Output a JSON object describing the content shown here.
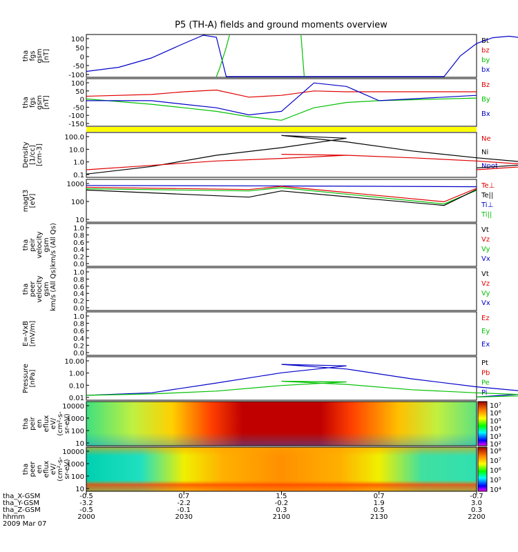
{
  "title": "P5 (TH-A) fields and ground moments overview",
  "panels": [
    {
      "ylabel": [
        "tha",
        "fgs",
        "gsm",
        "[nT]"
      ],
      "ticks": [
        "100",
        "50",
        "0",
        "-50",
        "-100"
      ],
      "legend": [
        {
          "text": "Bt",
          "color": "#000000"
        },
        {
          "text": "bz",
          "color": "#e00000"
        },
        {
          "text": "by",
          "color": "#00c000"
        },
        {
          "text": "bx",
          "color": "#0000c8"
        }
      ]
    },
    {
      "ylabel": [
        "tha",
        "fgs",
        "gsm",
        "[nT]"
      ],
      "ticks": [
        "100",
        "50",
        "0",
        "-50",
        "-100",
        "-150"
      ],
      "legend": [
        {
          "text": "Bz",
          "color": "#e00000"
        },
        {
          "text": "By",
          "color": "#00c000"
        },
        {
          "text": "Bx",
          "color": "#0000c8"
        }
      ]
    },
    {
      "ylabel": [
        "Density",
        "[1/cc]",
        "[cm-3]"
      ],
      "ticks": [
        "100.0",
        "10.0",
        "1.0",
        "0.1"
      ],
      "legend": [
        {
          "text": "Ne",
          "color": "#e00000"
        },
        {
          "text": "Ni",
          "color": "#000000"
        },
        {
          "text": "Npot",
          "color": "#0000c8"
        }
      ]
    },
    {
      "ylabel": [
        "magt3",
        "[eV]"
      ],
      "ticks": [
        "1000",
        "100",
        "10"
      ],
      "legend": [
        {
          "text": "Te⊥",
          "color": "#e00000"
        },
        {
          "text": "Te||",
          "color": "#000000"
        },
        {
          "text": "Ti⊥",
          "color": "#0000c8"
        },
        {
          "text": "Ti||",
          "color": "#00c000"
        }
      ]
    },
    {
      "ylabel": [
        "tha",
        "peir",
        "velocity",
        "gsm",
        "km/s (All Qs)"
      ],
      "ticks": [
        "1.0",
        "0.8",
        "0.6",
        "0.4",
        "0.2",
        "0.0"
      ],
      "legend": [
        {
          "text": "Vt",
          "color": "#000000"
        },
        {
          "text": "Vz",
          "color": "#e00000"
        },
        {
          "text": "Vy",
          "color": "#00c000"
        },
        {
          "text": "Vx",
          "color": "#0000c8"
        }
      ]
    },
    {
      "ylabel": [
        "tha",
        "peer",
        "velocity",
        "gsm",
        "km/s (All Qs)"
      ],
      "ticks": [
        "1.0",
        "0.8",
        "0.6",
        "0.4",
        "0.2",
        "0.0"
      ],
      "legend": [
        {
          "text": "Vt",
          "color": "#000000"
        },
        {
          "text": "Vz",
          "color": "#e00000"
        },
        {
          "text": "Vy",
          "color": "#00c000"
        },
        {
          "text": "Vx",
          "color": "#0000c8"
        }
      ]
    },
    {
      "ylabel": [
        "E=-VxB",
        "[mV/m]"
      ],
      "ticks": [
        "1.0",
        "0.8",
        "0.6",
        "0.4",
        "0.2",
        "0.0"
      ],
      "legend": [
        {
          "text": "Ez",
          "color": "#e00000"
        },
        {
          "text": "Ey",
          "color": "#00c000"
        },
        {
          "text": "Ex",
          "color": "#0000c8"
        }
      ]
    },
    {
      "ylabel": [
        "Pressure",
        "[nPa]"
      ],
      "ticks": [
        "10.00",
        "1.00",
        "0.10",
        "0.01"
      ],
      "legend": [
        {
          "text": "Pt",
          "color": "#000000"
        },
        {
          "text": "Pb",
          "color": "#e00000"
        },
        {
          "text": "Pe",
          "color": "#00c000"
        },
        {
          "text": "Pi",
          "color": "#0000c8"
        }
      ]
    },
    {
      "ylabel": [
        "tha",
        "peir",
        "en",
        "eflux",
        "eV/",
        "(cm²-s-",
        "sr-eV)"
      ],
      "ticks": [
        "10000",
        "1000",
        "100",
        "10"
      ],
      "colorbar": [
        "10⁷",
        "10⁶",
        "10⁵",
        "10⁴",
        "10³",
        "10²"
      ]
    },
    {
      "ylabel": [
        "tha",
        "peer",
        "en",
        "eflux",
        "eV/",
        "(cm²-s-",
        "sr-eV)"
      ],
      "ticks": [
        "10000",
        "1000",
        "100",
        "10"
      ],
      "colorbar": [
        "10⁸",
        "10⁷",
        "10⁶",
        "10⁵",
        "10⁴"
      ]
    }
  ],
  "xaxis": {
    "row_labels": [
      "tha_X-GSM",
      "tha_Y-GSM",
      "tha_Z-GSM",
      "hhmm",
      "2009 Mar 07"
    ],
    "columns": [
      {
        "x": "-0.5",
        "y": "-3.2",
        "z": "-0.5",
        "t": "2000"
      },
      {
        "x": "0.7",
        "y": "-2.2",
        "z": "-0.1",
        "t": "2030"
      },
      {
        "x": "1.5",
        "y": "-0.2",
        "z": "0.3",
        "t": "2100"
      },
      {
        "x": "0.7",
        "y": "1.9",
        "z": "0.5",
        "t": "2130"
      },
      {
        "x": "-0.7",
        "y": "3.0",
        "z": "0.3",
        "t": "2200"
      }
    ]
  },
  "chart_data": {
    "type": "line",
    "title": "P5 (TH-A) fields and ground moments overview",
    "x_time_range": [
      "2000",
      "2200"
    ],
    "x_ticks_hhmm": [
      "2000",
      "2030",
      "2100",
      "2130",
      "2200"
    ],
    "panels": [
      {
        "name": "tha fgs gsm",
        "ylim": [
          -100,
          100
        ],
        "series": [
          {
            "name": "bx",
            "color": "#0000c8",
            "x": [
              2000,
              2010,
              2020,
              2030,
              2036,
              2040,
              2043,
              2150,
              2155,
              2200,
              2205,
              2210,
              2220
            ],
            "y": [
              -75,
              -55,
              -10,
              60,
              100,
              90,
              -100,
              -100,
              0,
              60,
              88,
              95,
              75
            ]
          },
          {
            "name": "by",
            "color": "#00c000",
            "x": [
              2040,
              2041,
              2043,
              2044
            ],
            "y": [
              -100,
              -60,
              40,
              100
            ]
          },
          {
            "name": "by",
            "color": "#00c000",
            "x": [
              2106,
              2107
            ],
            "y": [
              100,
              -100
            ]
          }
        ]
      },
      {
        "name": "tha fgs gsm (detrended)",
        "ylim": [
          -160,
          100
        ],
        "series": [
          {
            "name": "Bz",
            "color": "#e00000",
            "x": [
              2000,
              2020,
              2030,
              2040,
              2050,
              2100,
              2110,
              2120,
              2130,
              2200
            ],
            "y": [
              5,
              15,
              30,
              40,
              0,
              10,
              35,
              30,
              30,
              30
            ]
          },
          {
            "name": "By",
            "color": "#00c000",
            "x": [
              2000,
              2020,
              2030,
              2040,
              2050,
              2100,
              2110,
              2120,
              2130,
              2200
            ],
            "y": [
              -10,
              -40,
              -60,
              -80,
              -110,
              -130,
              -60,
              -30,
              -20,
              -5
            ]
          },
          {
            "name": "Bx",
            "color": "#0000c8",
            "x": [
              2000,
              2020,
              2030,
              2040,
              2050,
              2100,
              2110,
              2120,
              2130,
              2200
            ],
            "y": [
              -20,
              -20,
              -40,
              -60,
              -100,
              -80,
              80,
              60,
              -20,
              10
            ]
          }
        ]
      },
      {
        "name": "Density",
        "ylim": [
          0.1,
          100
        ],
        "log": true,
        "series": [
          {
            "name": "Ni",
            "color": "#000000",
            "x": [
              2000,
              2020,
              2040,
              2060,
              2080,
              2100,
              2120,
              2140,
              2160,
              2180,
              2200
            ],
            "y": [
              0.15,
              0.5,
              3,
              10,
              45,
              70,
              25,
              6,
              2,
              0.8,
              0.4
            ]
          },
          {
            "name": "Ne",
            "color": "#e00000",
            "x": [
              2000,
              2020,
              2040,
              2060,
              2080,
              2100,
              2120,
              2140,
              2160,
              2180,
              2200
            ],
            "y": [
              0.3,
              0.6,
              1.2,
              1.8,
              3,
              3.5,
              3,
              2,
              1.2,
              0.6,
              0.3
            ]
          }
        ]
      },
      {
        "name": "Temperature",
        "ylim": [
          10,
          1000
        ],
        "log": true,
        "series": [
          {
            "name": "Ti⊥",
            "color": "#0000c8",
            "x": [
              2000,
              2100,
              2200
            ],
            "y": [
              550,
              520,
              480
            ]
          },
          {
            "name": "Te⊥",
            "color": "#e00000",
            "x": [
              2000,
              2050,
              2100,
              2150,
              2200
            ],
            "y": [
              450,
              350,
              500,
              90,
              400
            ]
          },
          {
            "name": "Ti||",
            "color": "#00c000",
            "x": [
              2000,
              2050,
              2100,
              2150,
              2200
            ],
            "y": [
              380,
              300,
              430,
              70,
              320
            ]
          },
          {
            "name": "Te||",
            "color": "#000000",
            "x": [
              2000,
              2050,
              2100,
              2150,
              2200
            ],
            "y": [
              330,
              150,
              300,
              60,
              350
            ]
          }
        ]
      },
      {
        "name": "Pressure",
        "ylim": [
          0.01,
          10
        ],
        "log": true,
        "series": [
          {
            "name": "Pi",
            "color": "#0000c8",
            "x": [
              2000,
              2020,
              2040,
              2060,
              2080,
              2100,
              2120,
              2140,
              2160,
              2180,
              2200
            ],
            "y": [
              0.02,
              0.03,
              0.15,
              0.8,
              2.5,
              3.2,
              1.5,
              0.3,
              0.08,
              0.03,
              0.015
            ]
          },
          {
            "name": "Pe",
            "color": "#00c000",
            "x": [
              2000,
              2020,
              2040,
              2060,
              2080,
              2100,
              2120,
              2140,
              2160,
              2180,
              2200
            ],
            "y": [
              0.02,
              0.025,
              0.04,
              0.1,
              0.18,
              0.2,
              0.12,
              0.05,
              0.03,
              0.02,
              0.015
            ]
          }
        ]
      },
      {
        "name": "tha peir en eflux",
        "type": "heatmap",
        "ylim": [
          10,
          20000
        ],
        "log": true,
        "colorbar": [
          "10⁷",
          "10⁶",
          "10⁵",
          "10⁴",
          "10³",
          "10²"
        ]
      },
      {
        "name": "tha peer en eflux",
        "type": "heatmap",
        "ylim": [
          10,
          20000
        ],
        "log": true,
        "colorbar": [
          "10⁸",
          "10⁷",
          "10⁶",
          "10⁵",
          "10⁴"
        ]
      }
    ]
  }
}
